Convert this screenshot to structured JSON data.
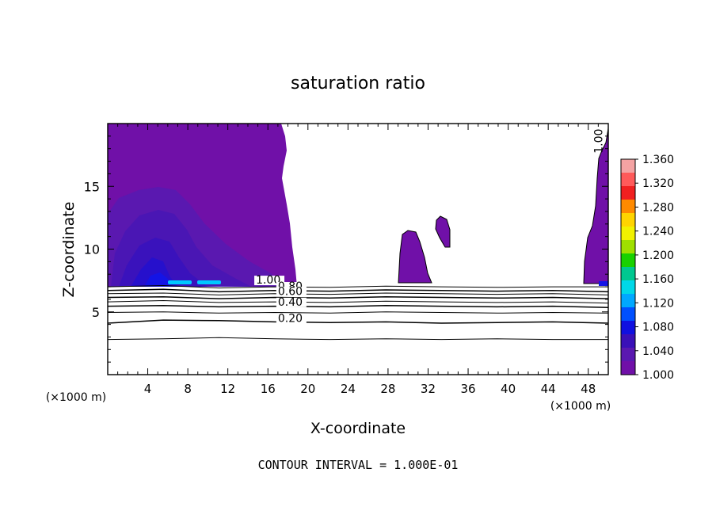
{
  "chart_data": {
    "type": "heatmap",
    "title": "saturation ratio",
    "xlabel": "X-coordinate",
    "ylabel": "Z-coordinate",
    "x_unit": "(×1000 m)",
    "y_unit": "(×1000 m)",
    "xlim": [
      0,
      50
    ],
    "ylim": [
      0,
      20
    ],
    "x_ticks": [
      4,
      8,
      12,
      16,
      20,
      24,
      28,
      32,
      36,
      40,
      44,
      48
    ],
    "y_ticks": [
      5,
      10,
      15
    ],
    "footer": "CONTOUR INTERVAL = 1.000E-01",
    "colorbar": {
      "min": 1.0,
      "max": 1.36,
      "labels": [
        "1.360",
        "1.320",
        "1.280",
        "1.240",
        "1.200",
        "1.160",
        "1.120",
        "1.080",
        "1.040",
        "1.000"
      ],
      "colors": [
        "#f4a3a3",
        "#ff5a5a",
        "#f02020",
        "#ff8a00",
        "#ffd400",
        "#f2f200",
        "#9fe000",
        "#19d100",
        "#00c890",
        "#00d8e8",
        "#00a8ff",
        "#0050ff",
        "#1010e0",
        "#3a10b8",
        "#5a18b0",
        "#7010a8"
      ]
    },
    "contour_labels": [
      {
        "text": "1.00",
        "x": 14.8,
        "z": 7.25
      },
      {
        "text": "0.80",
        "x": 17.0,
        "z": 6.75
      },
      {
        "text": "0.60",
        "x": 17.0,
        "z": 6.35
      },
      {
        "text": "0.40",
        "x": 17.0,
        "z": 5.5
      },
      {
        "text": "0.20",
        "x": 17.0,
        "z": 4.2
      },
      {
        "text": "1.00",
        "x": 49.4,
        "z": 18.6
      }
    ],
    "contour_lines": [
      {
        "value": 0.9,
        "z": [
          7.0,
          7.1,
          6.9,
          7.0,
          6.95,
          7.05,
          7.0,
          6.95,
          7.0,
          7.0
        ]
      },
      {
        "value": 0.8,
        "z": [
          6.7,
          6.8,
          6.6,
          6.7,
          6.65,
          6.75,
          6.7,
          6.65,
          6.7,
          6.6
        ]
      },
      {
        "value": 0.7,
        "z": [
          6.45,
          6.5,
          6.35,
          6.45,
          6.4,
          6.5,
          6.45,
          6.4,
          6.45,
          6.35
        ]
      },
      {
        "value": 0.6,
        "z": [
          6.15,
          6.2,
          6.05,
          6.15,
          6.1,
          6.2,
          6.15,
          6.1,
          6.15,
          6.05
        ]
      },
      {
        "value": 0.5,
        "z": [
          5.8,
          5.9,
          5.75,
          5.8,
          5.75,
          5.85,
          5.8,
          5.75,
          5.8,
          5.7
        ]
      },
      {
        "value": 0.4,
        "z": [
          5.45,
          5.5,
          5.4,
          5.45,
          5.4,
          5.5,
          5.45,
          5.4,
          5.45,
          5.35
        ]
      },
      {
        "value": 0.3,
        "z": [
          4.95,
          5.0,
          4.9,
          4.95,
          4.9,
          5.0,
          4.95,
          4.9,
          4.95,
          4.9
        ]
      },
      {
        "value": 0.2,
        "z": [
          4.1,
          4.35,
          4.3,
          4.2,
          4.15,
          4.2,
          4.1,
          4.15,
          4.2,
          4.1
        ]
      },
      {
        "value": 0.1,
        "z": [
          2.8,
          2.85,
          2.95,
          2.85,
          2.8,
          2.85,
          2.8,
          2.85,
          2.8,
          2.8
        ]
      }
    ]
  }
}
